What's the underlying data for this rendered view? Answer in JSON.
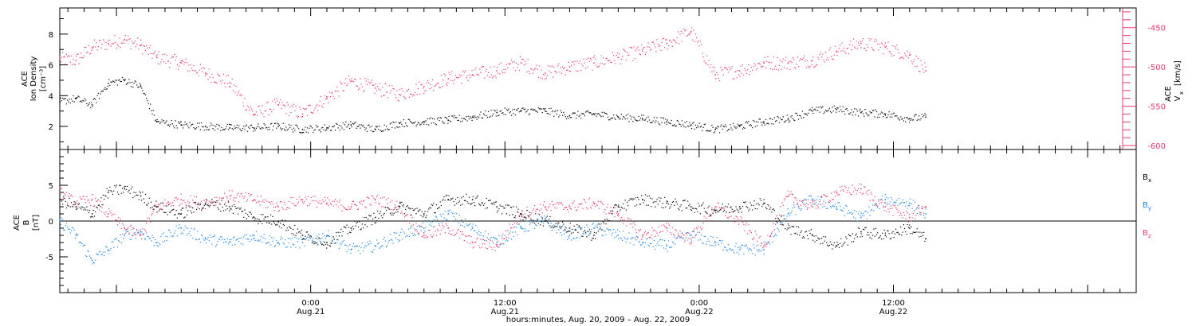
{
  "figure": {
    "xlabel": "hours:minutes, Aug. 20, 2009 – Aug. 22, 2009",
    "x_ticks": [
      {
        "hour": 24,
        "time": "0:00",
        "date": "Aug.21"
      },
      {
        "hour": 36,
        "time": "12:00",
        "date": "Aug.21"
      },
      {
        "hour": 48,
        "time": "0:00",
        "date": "Aug.22"
      },
      {
        "hour": 60,
        "time": "12:00",
        "date": "Aug.22"
      }
    ],
    "xlim_hours": [
      8.5,
      75
    ],
    "colors": {
      "black": "#000000",
      "blue": "#1e88e5",
      "pink": "#e8396f"
    }
  },
  "chart_data": [
    {
      "type": "scatter",
      "panel": "top",
      "ylabel_lines": [
        "ACE",
        "Ion Density",
        "[cm⁻³]"
      ],
      "y2label_lines": [
        "ACE",
        "V",
        "x",
        "[km/s]"
      ],
      "ylim": [
        0.5,
        9.7
      ],
      "y_ticks": [
        2,
        4,
        6,
        8
      ],
      "y2lim": [
        -605,
        -425
      ],
      "y2_ticks": [
        -600,
        -550,
        -500,
        -450
      ],
      "series": [
        {
          "axis": "left",
          "color": "#000000",
          "x": [
            8.5,
            9.5,
            10.5,
            11.5,
            12.5,
            13.5,
            14.5,
            16,
            17.5,
            19,
            20.5,
            22,
            23.5,
            25,
            26.5,
            28,
            29.5,
            31,
            32.5,
            34,
            35.5,
            37,
            38.5,
            40,
            41.5,
            43,
            44.5,
            46,
            47.5,
            49,
            50.5,
            52,
            53.5,
            55,
            56.5,
            58,
            59.5,
            61,
            62
          ],
          "y": [
            3.6,
            3.8,
            3.4,
            4.8,
            5.0,
            4.6,
            2.3,
            2.1,
            2.0,
            1.9,
            1.9,
            2.0,
            1.8,
            1.9,
            2.1,
            1.8,
            2.2,
            2.3,
            2.4,
            2.6,
            2.9,
            3.0,
            3.0,
            2.7,
            2.8,
            2.6,
            2.5,
            2.3,
            2.1,
            1.8,
            2.0,
            2.3,
            2.5,
            3.0,
            3.1,
            2.9,
            2.8,
            2.5,
            2.6
          ]
        },
        {
          "axis": "right",
          "color": "#e8396f",
          "x": [
            8.5,
            9.5,
            10.5,
            11.5,
            12.5,
            13.5,
            14.5,
            16,
            17.5,
            19,
            20.5,
            22,
            23.5,
            25,
            26.5,
            28,
            29.5,
            31,
            32.5,
            34,
            35.5,
            37,
            38.5,
            40,
            41.5,
            43,
            44.5,
            46,
            47.5,
            49,
            50.5,
            52,
            53.5,
            55,
            56.5,
            58,
            59.5,
            61,
            62
          ],
          "y": [
            -490,
            -492,
            -475,
            -470,
            -465,
            -473,
            -488,
            -495,
            -508,
            -520,
            -560,
            -548,
            -560,
            -540,
            -518,
            -527,
            -535,
            -525,
            -515,
            -510,
            -505,
            -495,
            -508,
            -500,
            -495,
            -488,
            -480,
            -470,
            -455,
            -510,
            -505,
            -495,
            -495,
            -492,
            -480,
            -470,
            -475,
            -485,
            -505
          ]
        }
      ]
    },
    {
      "type": "scatter",
      "panel": "bottom",
      "ylabel_lines": [
        "ACE",
        "B",
        "[nT]"
      ],
      "ylim": [
        -10,
        10
      ],
      "y_ticks": [
        -5,
        0,
        5
      ],
      "legend": [
        {
          "name": "B",
          "sub": "x",
          "color": "#000000"
        },
        {
          "name": "B",
          "sub": "y",
          "color": "#1e88e5"
        },
        {
          "name": "B",
          "sub": "z",
          "color": "#e8396f"
        }
      ],
      "series": [
        {
          "name": "Bx",
          "color": "#000000",
          "x": [
            8.5,
            9.5,
            10.5,
            11.5,
            12.5,
            13.5,
            14.5,
            16,
            17.5,
            19,
            20.5,
            22,
            23.5,
            25,
            26.5,
            28,
            29.5,
            31,
            32.5,
            34,
            35.5,
            37,
            38.5,
            40,
            41.5,
            43,
            44.5,
            46,
            47.5,
            49,
            50.5,
            52,
            53.5,
            55,
            56.5,
            58,
            59.5,
            61,
            62
          ],
          "y": [
            3.0,
            2.0,
            1.0,
            4.0,
            4.5,
            3.5,
            2.0,
            1.0,
            2.5,
            2.0,
            0.5,
            0.0,
            -2.0,
            -3.0,
            -1.0,
            0.5,
            2.0,
            1.0,
            3.0,
            3.0,
            2.0,
            1.0,
            0.0,
            -1.0,
            -2.0,
            2.0,
            3.0,
            2.5,
            2.0,
            1.5,
            2.0,
            2.5,
            -1.0,
            -2.0,
            -3.5,
            -1.5,
            -2.0,
            -1.0,
            -2.5
          ]
        },
        {
          "name": "By",
          "color": "#1e88e5",
          "x": [
            8.5,
            9.5,
            10.5,
            11.5,
            12.5,
            13.5,
            14.5,
            16,
            17.5,
            19,
            20.5,
            22,
            23.5,
            25,
            26.5,
            28,
            29.5,
            31,
            32.5,
            34,
            35.5,
            37,
            38.5,
            40,
            41.5,
            43,
            44.5,
            46,
            47.5,
            49,
            50.5,
            52,
            53.5,
            55,
            56.5,
            58,
            59.5,
            61,
            62
          ],
          "y": [
            0.0,
            -2.0,
            -5.5,
            -4.0,
            -2.0,
            -1.5,
            -3.0,
            -1.0,
            -2.5,
            -3.0,
            -2.0,
            -3.0,
            -3.0,
            -2.0,
            -4.0,
            -3.5,
            -2.0,
            -1.0,
            1.0,
            -1.0,
            -3.0,
            -1.0,
            0.0,
            -2.0,
            -1.0,
            -2.0,
            -3.0,
            -3.5,
            -2.0,
            -3.0,
            -4.0,
            -4.0,
            1.0,
            3.0,
            2.0,
            0.5,
            3.0,
            2.5,
            1.0
          ]
        },
        {
          "name": "Bz",
          "color": "#e8396f",
          "x": [
            8.5,
            9.5,
            10.5,
            11.5,
            12.5,
            13.5,
            14.5,
            16,
            17.5,
            19,
            20.5,
            22,
            23.5,
            25,
            26.5,
            28,
            29.5,
            31,
            32.5,
            34,
            35.5,
            37,
            38.5,
            40,
            41.5,
            43,
            44.5,
            46,
            47.5,
            49,
            50.5,
            52,
            53.5,
            55,
            56.5,
            58,
            59.5,
            61,
            62
          ],
          "y": [
            4.0,
            2.5,
            3.0,
            1.0,
            -1.0,
            -2.0,
            2.0,
            3.0,
            2.5,
            3.5,
            3.0,
            2.0,
            3.0,
            2.5,
            2.0,
            3.0,
            2.0,
            -2.0,
            -1.0,
            -3.0,
            -3.5,
            1.0,
            2.0,
            2.0,
            2.5,
            1.0,
            -2.0,
            -1.0,
            -2.5,
            2.0,
            0.0,
            -3.5,
            3.5,
            2.0,
            4.0,
            4.5,
            2.0,
            0.5,
            2.0
          ]
        }
      ]
    }
  ]
}
